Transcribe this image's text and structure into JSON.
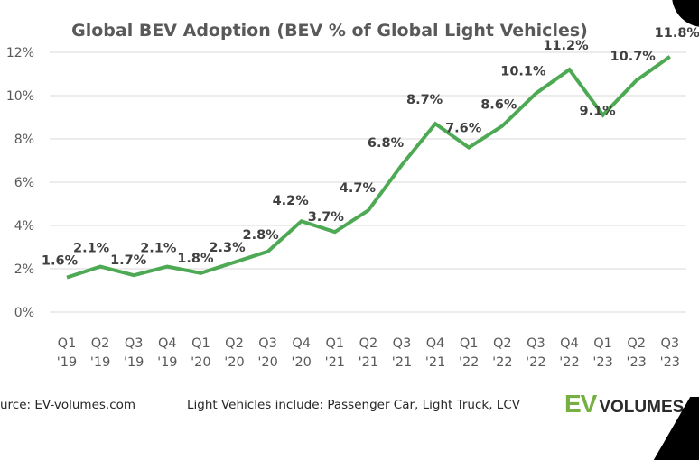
{
  "chart_data": {
    "type": "line",
    "title": "Global BEV Adoption (BEV % of Global Light Vehicles)",
    "xlabel": "",
    "ylabel": "",
    "ylim": [
      0,
      12
    ],
    "yticks": [
      0,
      2,
      4,
      6,
      8,
      10,
      12
    ],
    "ytick_labels": [
      "0%",
      "2%",
      "4%",
      "6%",
      "8%",
      "10%",
      "12%"
    ],
    "grid": true,
    "legend": "none",
    "categories": [
      {
        "q": "Q1",
        "y": "'19"
      },
      {
        "q": "Q2",
        "y": "'19"
      },
      {
        "q": "Q3",
        "y": "'19"
      },
      {
        "q": "Q4",
        "y": "'19"
      },
      {
        "q": "Q1",
        "y": "'20"
      },
      {
        "q": "Q2",
        "y": "'20"
      },
      {
        "q": "Q3",
        "y": "'20"
      },
      {
        "q": "Q4",
        "y": "'20"
      },
      {
        "q": "Q1",
        "y": "'21"
      },
      {
        "q": "Q2",
        "y": "'21"
      },
      {
        "q": "Q3",
        "y": "'21"
      },
      {
        "q": "Q4",
        "y": "'21"
      },
      {
        "q": "Q1",
        "y": "'22"
      },
      {
        "q": "Q2",
        "y": "'22"
      },
      {
        "q": "Q3",
        "y": "'22"
      },
      {
        "q": "Q4",
        "y": "'22"
      },
      {
        "q": "Q1",
        "y": "'23"
      },
      {
        "q": "Q2",
        "y": "'23"
      },
      {
        "q": "Q3",
        "y": "'23"
      }
    ],
    "series": [
      {
        "name": "BEV % of Global Light Vehicles",
        "color": "#4ea954",
        "values": [
          1.6,
          2.1,
          1.7,
          2.1,
          1.8,
          2.3,
          2.8,
          4.2,
          3.7,
          4.7,
          6.8,
          8.7,
          7.6,
          8.6,
          10.1,
          11.2,
          9.1,
          10.7,
          11.8
        ],
        "labels": [
          "1.6%",
          "2.1%",
          "1.7%",
          "2.1%",
          "1.8%",
          "2.3%",
          "2.8%",
          "4.2%",
          "3.7%",
          "4.7%",
          "6.8%",
          "8.7%",
          "7.6%",
          "8.6%",
          "10.1%",
          "11.2%",
          "9.1%",
          "10.7%",
          "11.8%"
        ]
      }
    ]
  },
  "footer": {
    "source": "urce: EV-volumes.com",
    "note": "Light Vehicles include: Passenger Car, Light Truck, LCV"
  },
  "logo": {
    "ev": "EV",
    "volumes": "VOLUMES"
  }
}
